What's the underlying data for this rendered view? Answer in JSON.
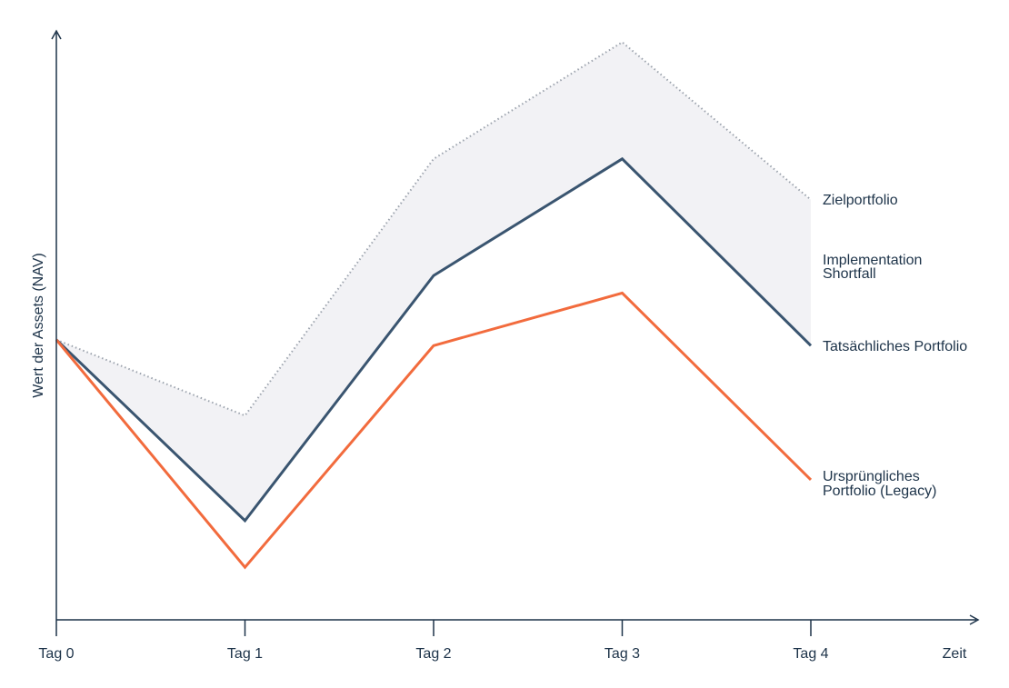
{
  "chart_data": {
    "type": "line",
    "title": "",
    "xlabel": "Zeit",
    "ylabel": "Wert der Assets (NAV)",
    "categories": [
      "Tag 0",
      "Tag 1",
      "Tag 2",
      "Tag 3",
      "Tag 4"
    ],
    "ylim": [
      0,
      100
    ],
    "y_ticks_shown": false,
    "grid": false,
    "series": [
      {
        "name": "Zielportfolio",
        "values": [
          48,
          35,
          79,
          99,
          72
        ],
        "color": "#9ca3ad",
        "style": "dotted"
      },
      {
        "name": "Tatsächliches Portfolio",
        "values": [
          48,
          17,
          59,
          79,
          47
        ],
        "color": "#3a5570",
        "style": "solid"
      },
      {
        "name": "Ursprüngliches Portfolio (Legacy)",
        "values": [
          48,
          9,
          47,
          56,
          24
        ],
        "color": "#f26b3d",
        "style": "solid"
      }
    ],
    "band": {
      "label": [
        "Implementation",
        "Shortfall"
      ],
      "between": [
        "Zielportfolio",
        "Tatsächliches Portfolio"
      ],
      "color": "#f2f2f5"
    },
    "direct_labels": [
      {
        "series": "Zielportfolio",
        "lines": [
          "Zielportfolio"
        ]
      },
      {
        "series": "Tatsächliches Portfolio",
        "lines": [
          "Tatsächliches Portfolio"
        ]
      },
      {
        "series": "Ursprüngliches Portfolio (Legacy)",
        "lines": [
          "Ursprüngliches",
          "Portfolio (Legacy)"
        ]
      }
    ]
  }
}
